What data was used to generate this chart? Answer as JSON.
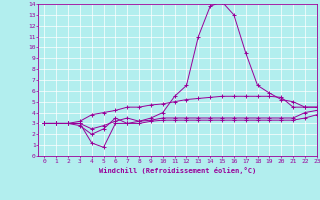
{
  "xlabel": "Windchill (Refroidissement éolien,°C)",
  "background_color": "#b2eeee",
  "line_color": "#990099",
  "grid_color": "#ffffff",
  "xlim": [
    -0.5,
    23
  ],
  "ylim": [
    0,
    14
  ],
  "xticks": [
    0,
    1,
    2,
    3,
    4,
    5,
    6,
    7,
    8,
    9,
    10,
    11,
    12,
    13,
    14,
    15,
    16,
    17,
    18,
    19,
    20,
    21,
    22,
    23
  ],
  "yticks": [
    0,
    1,
    2,
    3,
    4,
    5,
    6,
    7,
    8,
    9,
    10,
    11,
    12,
    13,
    14
  ],
  "lines": [
    [
      3.0,
      3.0,
      3.0,
      3.2,
      3.8,
      4.0,
      4.2,
      4.5,
      4.5,
      4.7,
      4.8,
      5.0,
      5.2,
      5.3,
      5.4,
      5.5,
      5.5,
      5.5,
      5.5,
      5.5,
      5.4,
      4.5,
      4.5,
      4.5
    ],
    [
      3.0,
      3.0,
      3.0,
      3.0,
      2.5,
      2.8,
      3.2,
      3.5,
      3.2,
      3.5,
      4.0,
      5.5,
      6.5,
      11.0,
      13.8,
      14.2,
      13.0,
      9.5,
      6.5,
      5.8,
      5.2,
      5.0,
      4.5,
      4.5
    ],
    [
      3.0,
      3.0,
      3.0,
      2.8,
      2.0,
      2.5,
      3.5,
      3.0,
      3.2,
      3.3,
      3.5,
      3.5,
      3.5,
      3.5,
      3.5,
      3.5,
      3.5,
      3.5,
      3.5,
      3.5,
      3.5,
      3.5,
      4.0,
      4.2
    ],
    [
      3.0,
      3.0,
      3.0,
      3.0,
      1.2,
      0.8,
      3.0,
      3.0,
      3.0,
      3.2,
      3.3,
      3.3,
      3.3,
      3.3,
      3.3,
      3.3,
      3.3,
      3.3,
      3.3,
      3.3,
      3.3,
      3.3,
      3.5,
      3.8
    ]
  ]
}
